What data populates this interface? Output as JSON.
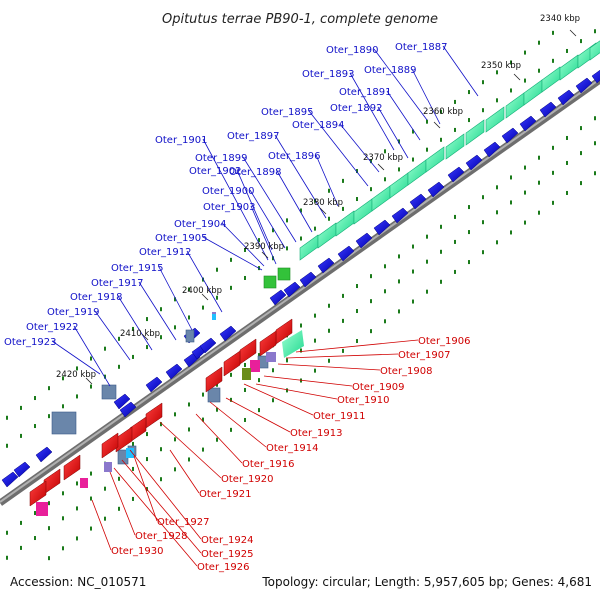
{
  "title": "Opitutus terrae PB90-1, complete genome",
  "footer": {
    "accession": "Accession: NC_010571",
    "summary": "Topology: circular; Length: 5,957,605 bp; Genes: 4,681"
  },
  "colors": {
    "forward_gene": "#1010d8",
    "reverse_gene": "#e00000",
    "label_blue": "#1010c8",
    "label_red": "#d00000",
    "feature_green": "#33e6a0",
    "backbone": "#8a8a8a",
    "dots": "#1a7a1a"
  },
  "tick_labels": [
    "2340 kbp",
    "2350 kbp",
    "2360 kbp",
    "2370 kbp",
    "2380 kbp",
    "2390 kbp",
    "2400 kbp",
    "2410 kbp",
    "2420 kbp"
  ],
  "forward_labels": [
    "Oter_1887",
    "Oter_1889",
    "Oter_1890",
    "Oter_1891",
    "Oter_1892",
    "Oter_1893",
    "Oter_1894",
    "Oter_1895",
    "Oter_1896",
    "Oter_1897",
    "Oter_1898",
    "Oter_1899",
    "Oter_1900",
    "Oter_1901",
    "Oter_1902",
    "Oter_1903",
    "Oter_1904",
    "Oter_1905",
    "Oter_1912",
    "Oter_1915",
    "Oter_1917",
    "Oter_1918",
    "Oter_1919",
    "Oter_1922",
    "Oter_1923"
  ],
  "reverse_labels": [
    "Oter_1906",
    "Oter_1907",
    "Oter_1908",
    "Oter_1909",
    "Oter_1910",
    "Oter_1911",
    "Oter_1913",
    "Oter_1914",
    "Oter_1916",
    "Oter_1920",
    "Oter_1921",
    "Oter_1924",
    "Oter_1925",
    "Oter_1926",
    "Oter_1927",
    "Oter_1928",
    "Oter_1930"
  ]
}
